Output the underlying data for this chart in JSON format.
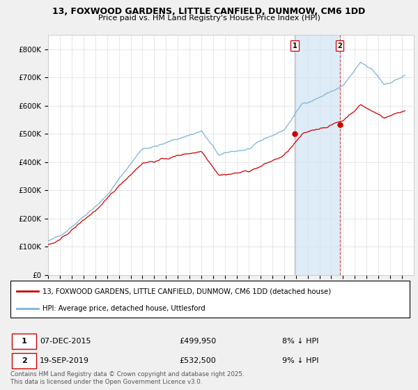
{
  "title_line1": "13, FOXWOOD GARDENS, LITTLE CANFIELD, DUNMOW, CM6 1DD",
  "title_line2": "Price paid vs. HM Land Registry's House Price Index (HPI)",
  "hpi_color": "#7ab4d8",
  "price_color": "#cc0000",
  "vline1_color": "#888888",
  "vline2_color": "#cc0000",
  "shade_color": "#d0e4f5",
  "background_color": "#f0f0f0",
  "plot_bg_color": "#ffffff",
  "legend_label_price": "13, FOXWOOD GARDENS, LITTLE CANFIELD, DUNMOW, CM6 1DD (detached house)",
  "legend_label_hpi": "HPI: Average price, detached house, Uttlesford",
  "purchase1_date_str": "07-DEC-2015",
  "purchase1_price": 499950,
  "purchase1_label": "1",
  "purchase1_year": 2015.92,
  "purchase2_date_str": "19-SEP-2019",
  "purchase2_price": 532500,
  "purchase2_label": "2",
  "purchase2_year": 2019.72,
  "table_note": "Contains HM Land Registry data © Crown copyright and database right 2025.\nThis data is licensed under the Open Government Licence v3.0.",
  "ylim_min": 0,
  "ylim_max": 850000,
  "yticks": [
    0,
    100000,
    200000,
    300000,
    400000,
    500000,
    600000,
    700000,
    800000
  ],
  "ytick_labels": [
    "£0",
    "£100K",
    "£200K",
    "£300K",
    "£400K",
    "£500K",
    "£600K",
    "£700K",
    "£800K"
  ],
  "xmin": 1995,
  "xmax": 2026
}
